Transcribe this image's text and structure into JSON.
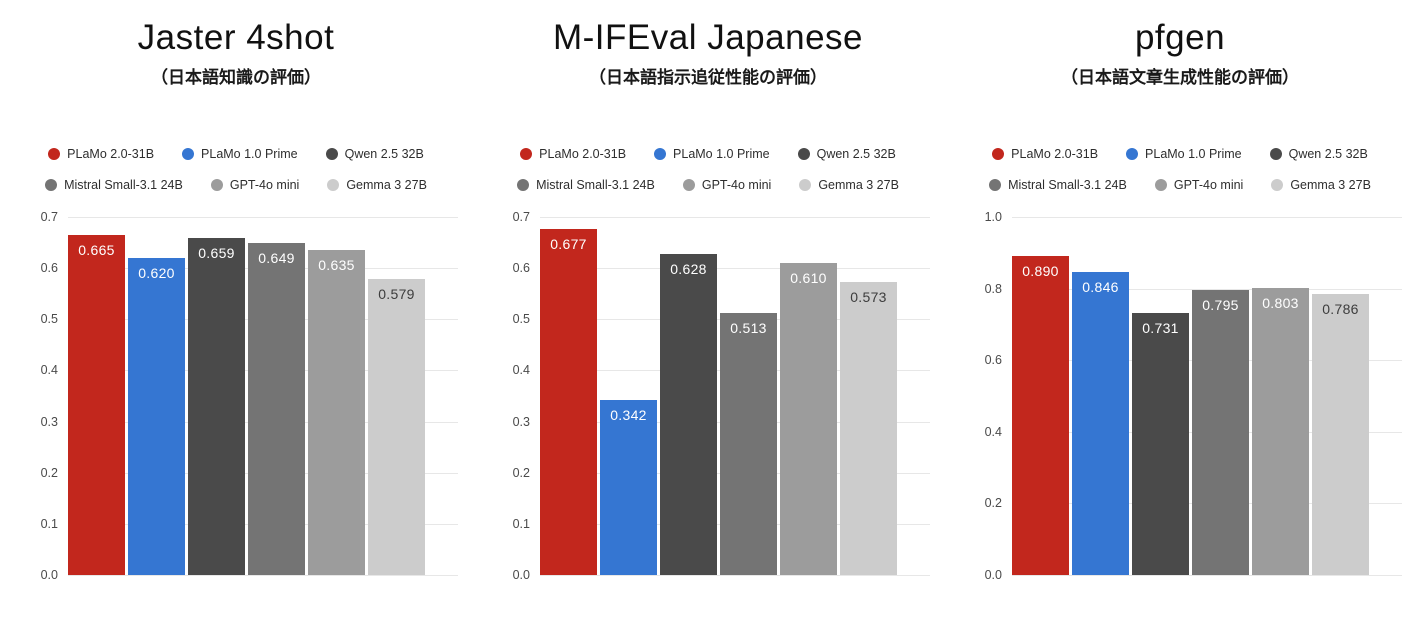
{
  "page": {
    "background": "#ffffff"
  },
  "colors": {
    "gridline": "#e7e7e7",
    "tick_text": "#4a4a4a",
    "title_text": "#111111",
    "subtitle_text": "#1a1a1a",
    "legend_text": "#2e2e2e"
  },
  "series": [
    {
      "name": "PLaMo 2.0-31B",
      "color": "#c2271d",
      "value_text_color": "#ffffff"
    },
    {
      "name": "PLaMo 1.0 Prime",
      "color": "#3576d2",
      "value_text_color": "#ffffff"
    },
    {
      "name": "Qwen 2.5 32B",
      "color": "#4a4a4a",
      "value_text_color": "#ffffff"
    },
    {
      "name": "Mistral Small-3.1 24B",
      "color": "#747474",
      "value_text_color": "#ffffff"
    },
    {
      "name": "GPT-4o mini",
      "color": "#9c9c9c",
      "value_text_color": "#ffffff"
    },
    {
      "name": "Gemma 3 27B",
      "color": "#cccccc",
      "value_text_color": "#3d3d3d"
    }
  ],
  "chart_data": [
    {
      "type": "bar",
      "title": "Jaster 4shot",
      "subtitle": "（日本語知識の評価）",
      "categories": [
        "PLaMo 2.0-31B",
        "PLaMo 1.0 Prime",
        "Qwen 2.5 32B",
        "Mistral Small-3.1 24B",
        "GPT-4o mini",
        "Gemma 3 27B"
      ],
      "values": [
        0.665,
        0.62,
        0.659,
        0.649,
        0.635,
        0.579
      ],
      "value_labels": [
        "0.665",
        "0.620",
        "0.659",
        "0.649",
        "0.635",
        "0.579"
      ],
      "ylim": [
        0,
        0.7
      ],
      "yticks": [
        0.7,
        0.6,
        0.5,
        0.4,
        0.3,
        0.2,
        0.1,
        0.0
      ],
      "ytick_labels": [
        "0.7",
        "0.6",
        "0.5",
        "0.4",
        "0.3",
        "0.2",
        "0.1",
        "0.0"
      ],
      "grid": true,
      "legend_position": "top"
    },
    {
      "type": "bar",
      "title": "M-IFEval Japanese",
      "subtitle": "（日本語指示追従性能の評価）",
      "categories": [
        "PLaMo 2.0-31B",
        "PLaMo 1.0 Prime",
        "Qwen 2.5 32B",
        "Mistral Small-3.1 24B",
        "GPT-4o mini",
        "Gemma 3 27B"
      ],
      "values": [
        0.677,
        0.342,
        0.628,
        0.513,
        0.61,
        0.573
      ],
      "value_labels": [
        "0.677",
        "0.342",
        "0.628",
        "0.513",
        "0.610",
        "0.573"
      ],
      "ylim": [
        0,
        0.7
      ],
      "yticks": [
        0.7,
        0.6,
        0.5,
        0.4,
        0.3,
        0.2,
        0.1,
        0.0
      ],
      "ytick_labels": [
        "0.7",
        "0.6",
        "0.5",
        "0.4",
        "0.3",
        "0.2",
        "0.1",
        "0.0"
      ],
      "grid": true,
      "legend_position": "top"
    },
    {
      "type": "bar",
      "title": "pfgen",
      "subtitle": "（日本語文章生成性能の評価）",
      "categories": [
        "PLaMo 2.0-31B",
        "PLaMo 1.0 Prime",
        "Qwen 2.5 32B",
        "Mistral Small-3.1 24B",
        "GPT-4o mini",
        "Gemma 3 27B"
      ],
      "values": [
        0.89,
        0.846,
        0.731,
        0.795,
        0.803,
        0.786
      ],
      "value_labels": [
        "0.890",
        "0.846",
        "0.731",
        "0.795",
        "0.803",
        "0.786"
      ],
      "ylim": [
        0,
        1.0
      ],
      "yticks": [
        1.0,
        0.8,
        0.6,
        0.4,
        0.2,
        0.0
      ],
      "ytick_labels": [
        "1.0",
        "0.8",
        "0.6",
        "0.4",
        "0.2",
        "0.0"
      ],
      "grid": true,
      "legend_position": "top"
    }
  ]
}
